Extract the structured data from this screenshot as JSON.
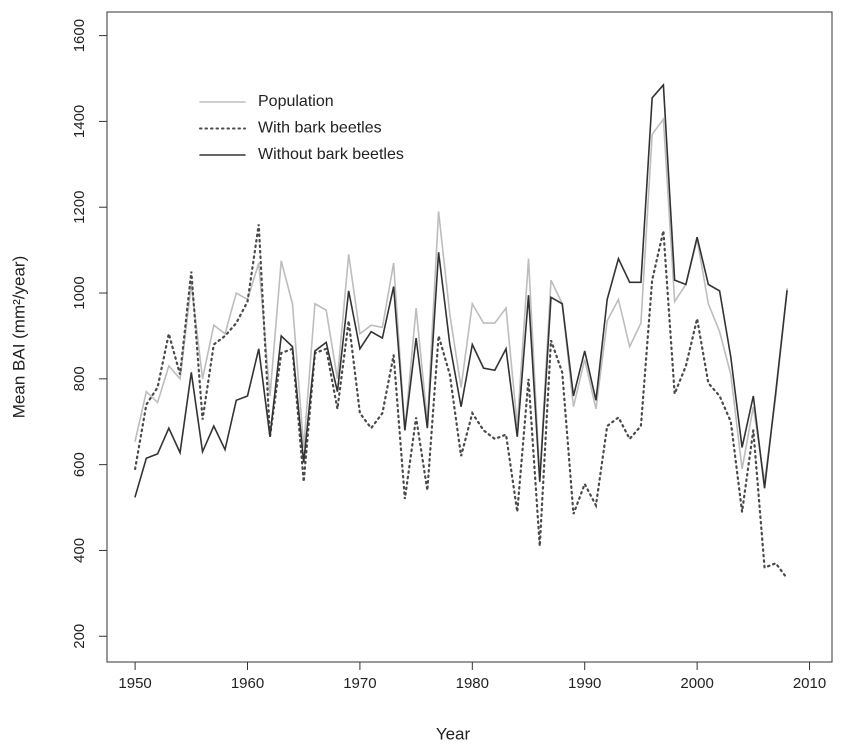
{
  "chart_data": {
    "type": "line",
    "xlabel": "Year",
    "ylabel": "Mean BAI (mm²/year)",
    "x": [
      1950,
      1951,
      1952,
      1953,
      1954,
      1955,
      1956,
      1957,
      1958,
      1959,
      1960,
      1961,
      1962,
      1963,
      1964,
      1965,
      1966,
      1967,
      1968,
      1969,
      1970,
      1971,
      1972,
      1973,
      1974,
      1975,
      1976,
      1977,
      1978,
      1979,
      1980,
      1981,
      1982,
      1983,
      1984,
      1985,
      1986,
      1987,
      1988,
      1989,
      1990,
      1991,
      1992,
      1993,
      1994,
      1995,
      1996,
      1997,
      1998,
      1999,
      2000,
      2001,
      2002,
      2003,
      2004,
      2005,
      2006,
      2007,
      2008
    ],
    "series": [
      {
        "name": "Population",
        "color": "#bdbdbd",
        "linestyle": "solid",
        "values": [
          655,
          770,
          745,
          830,
          800,
          1020,
          800,
          925,
          905,
          1000,
          985,
          1070,
          760,
          1075,
          975,
          640,
          975,
          960,
          800,
          1090,
          905,
          925,
          920,
          1070,
          680,
          965,
          700,
          1190,
          950,
          780,
          975,
          930,
          930,
          965,
          690,
          1080,
          570,
          1030,
          975,
          735,
          845,
          730,
          935,
          985,
          875,
          930,
          1370,
          1405,
          980,
          1020,
          1125,
          975,
          910,
          810,
          590,
          735,
          560,
          760,
          1010
        ]
      },
      {
        "name": "With bark beetles",
        "color": "#4a4a4a",
        "linestyle": "dotted",
        "values": [
          590,
          740,
          780,
          905,
          810,
          1050,
          705,
          880,
          900,
          930,
          980,
          1160,
          665,
          860,
          870,
          560,
          860,
          870,
          730,
          935,
          720,
          685,
          720,
          855,
          520,
          710,
          540,
          900,
          810,
          620,
          720,
          680,
          660,
          670,
          490,
          800,
          410,
          890,
          815,
          485,
          555,
          505,
          690,
          710,
          660,
          690,
          1030,
          1145,
          765,
          830,
          940,
          790,
          760,
          700,
          490,
          680,
          360,
          370,
          335
        ]
      },
      {
        "name": "Without bark beetles",
        "color": "#333333",
        "linestyle": "solid",
        "values": [
          525,
          615,
          625,
          685,
          628,
          815,
          630,
          690,
          635,
          750,
          760,
          870,
          665,
          900,
          875,
          605,
          865,
          885,
          770,
          1005,
          870,
          910,
          895,
          1015,
          680,
          895,
          685,
          1095,
          880,
          735,
          880,
          825,
          820,
          870,
          665,
          995,
          560,
          990,
          975,
          760,
          865,
          750,
          985,
          1080,
          1025,
          1025,
          1455,
          1485,
          1030,
          1020,
          1130,
          1020,
          1005,
          850,
          640,
          760,
          545,
          770,
          1005
        ]
      }
    ],
    "xlim": [
      1947.5,
      2012
    ],
    "ylim": [
      140,
      1655
    ],
    "xticks": [
      1950,
      1960,
      1970,
      1980,
      1990,
      2000,
      2010
    ],
    "yticks": [
      200,
      400,
      600,
      800,
      1000,
      1200,
      1400,
      1600
    ],
    "legend": "upper left",
    "grid": false
  }
}
